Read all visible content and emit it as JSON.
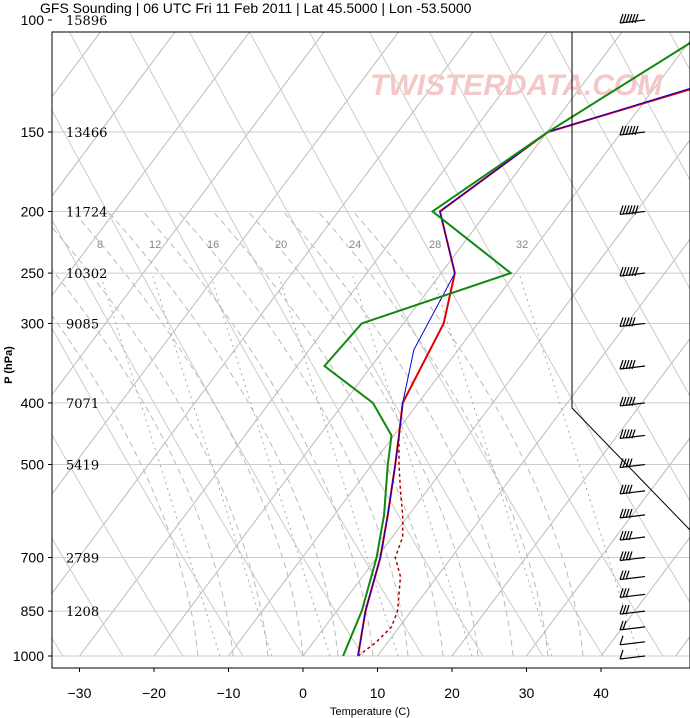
{
  "title": "GFS Sounding | 06 UTC Fri 11 Feb 2011 | Lat 45.5000 | Lon -53.5000",
  "watermark": "TWISTERDATA.COM",
  "chart_data": {
    "type": "line",
    "title": "GFS Sounding | 06 UTC Fri 11 Feb 2011 | Lat 45.5000 | Lon -53.5000",
    "xlabel": "Temperature (C)",
    "ylabel": "P (hPa)",
    "x_ticks": [
      -30,
      -20,
      -10,
      0,
      10,
      20,
      30,
      40
    ],
    "y_ticks": [
      100,
      150,
      200,
      250,
      300,
      400,
      500,
      700,
      850,
      1000
    ],
    "y_scale": "log",
    "heights": [
      {
        "p": 100,
        "label": "15896"
      },
      {
        "p": 150,
        "label": "13466"
      },
      {
        "p": 200,
        "label": "11724"
      },
      {
        "p": 250,
        "label": "10302"
      },
      {
        "p": 300,
        "label": "9085"
      },
      {
        "p": 400,
        "label": "7071"
      },
      {
        "p": 500,
        "label": "5419"
      },
      {
        "p": 700,
        "label": "2789"
      },
      {
        "p": 850,
        "label": "1208"
      }
    ],
    "mixing_ratio_labels": [
      "8",
      "12",
      "16",
      "20",
      "24",
      "28",
      "32"
    ],
    "series": [
      {
        "color": "#e00000",
        "p": [
          1000,
          850,
          700,
          600,
          500,
          450,
          400,
          300,
          250,
          200,
          150,
          100
        ],
        "x": [
          9.5,
          10.5,
          12.5,
          13.5,
          14.5,
          15.0,
          15.5,
          21.0,
          22.5,
          20.5,
          35.0,
          85.0
        ]
      },
      {
        "color": "#0000dd",
        "p": [
          1000,
          850,
          700,
          600,
          500,
          450,
          400,
          330,
          250,
          200,
          150,
          100
        ],
        "x": [
          9.5,
          10.5,
          12.5,
          13.5,
          14.5,
          15.0,
          15.5,
          17.0,
          22.5,
          20.5,
          35.0,
          84.0
        ]
      },
      {
        "color": "#118811",
        "p": [
          1000,
          850,
          700,
          600,
          500,
          450,
          400,
          350,
          300,
          250,
          200,
          150,
          100
        ],
        "x": [
          7.5,
          10.0,
          12.0,
          13.0,
          13.5,
          14.0,
          11.5,
          5.0,
          10.0,
          30.0,
          19.5,
          35.0,
          59.0
        ]
      },
      {
        "color": "#aa0000",
        "style": "dotted",
        "p": [
          1000,
          950,
          900,
          850,
          800,
          750,
          700,
          650,
          600,
          550,
          500,
          450
        ],
        "x": [
          9.5,
          12.0,
          14.0,
          14.8,
          15.0,
          15.2,
          14.5,
          15.5,
          15.5,
          15.2,
          15.0,
          15.0
        ]
      }
    ],
    "wind_barbs": [
      {
        "p": 100,
        "speed": 60
      },
      {
        "p": 150,
        "speed": 65
      },
      {
        "p": 200,
        "speed": 55
      },
      {
        "p": 250,
        "speed": 55
      },
      {
        "p": 300,
        "speed": 50
      },
      {
        "p": 350,
        "speed": 50
      },
      {
        "p": 400,
        "speed": 45
      },
      {
        "p": 450,
        "speed": 45
      },
      {
        "p": 500,
        "speed": 40
      },
      {
        "p": 550,
        "speed": 35
      },
      {
        "p": 600,
        "speed": 35
      },
      {
        "p": 650,
        "speed": 35
      },
      {
        "p": 700,
        "speed": 35
      },
      {
        "p": 750,
        "speed": 30
      },
      {
        "p": 800,
        "speed": 30
      },
      {
        "p": 850,
        "speed": 25
      },
      {
        "p": 900,
        "speed": 20
      },
      {
        "p": 950,
        "speed": 10
      },
      {
        "p": 1000,
        "speed": 5
      }
    ],
    "grid": true
  }
}
